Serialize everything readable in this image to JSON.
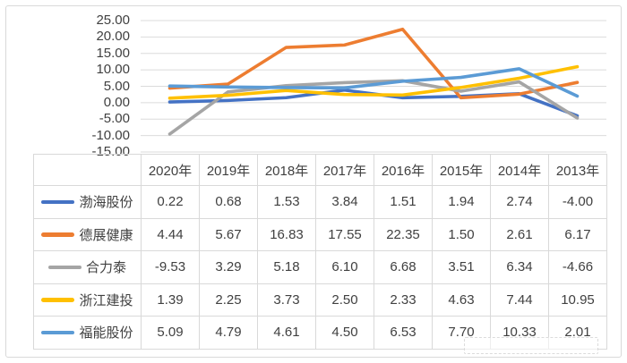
{
  "chart_data": {
    "type": "line",
    "title": "",
    "xlabel": "",
    "ylabel": "",
    "categories": [
      "2020年",
      "2019年",
      "2018年",
      "2017年",
      "2016年",
      "2015年",
      "2014年",
      "2013年"
    ],
    "series": [
      {
        "name": "渤海股份",
        "color": "#4472C4",
        "values": [
          0.22,
          0.68,
          1.53,
          3.84,
          1.51,
          1.94,
          2.74,
          -4.0
        ]
      },
      {
        "name": "德展健康",
        "color": "#ED7D31",
        "values": [
          4.44,
          5.67,
          16.83,
          17.55,
          22.35,
          1.5,
          2.61,
          6.17
        ]
      },
      {
        "name": "合力泰",
        "color": "#A5A5A5",
        "values": [
          -9.53,
          3.29,
          5.18,
          6.1,
          6.68,
          3.51,
          6.34,
          -4.66
        ]
      },
      {
        "name": "浙江建投",
        "color": "#FFC000",
        "values": [
          1.39,
          2.25,
          3.73,
          2.5,
          2.33,
          4.63,
          7.44,
          10.95
        ]
      },
      {
        "name": "福能股份",
        "color": "#5B9BD5",
        "values": [
          5.09,
          4.79,
          4.61,
          4.5,
          6.53,
          7.7,
          10.33,
          2.01
        ]
      }
    ],
    "ylim": [
      -15,
      25
    ],
    "ytick_step": 5,
    "ytick_labels": [
      "25.00",
      "20.00",
      "15.00",
      "10.00",
      "5.00",
      "0.00",
      "-5.00",
      "-10.00",
      "-15.00"
    ],
    "grid": true,
    "gridline_color": "#dbdbdb",
    "legend_position": "table-left-column",
    "value_decimals": 2
  }
}
